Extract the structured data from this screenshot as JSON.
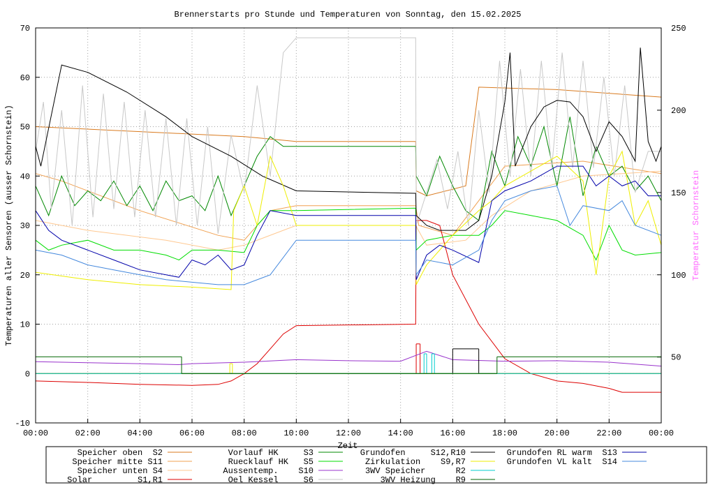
{
  "chart_data": {
    "type": "line",
    "title": "Brennerstarts pro Stunde und Temperaturen von Sonntag, den 15.02.2025",
    "x_label": "Zeit",
    "y_label": "Temperaturen aller Sensoren (ausser Schornstein)",
    "y2_label": "Temperatur Schornstein",
    "y2_label_color": "#ff66ff",
    "grid": true,
    "xlim": [
      0,
      24
    ],
    "xticks": [
      {
        "value": 0,
        "label": "00:00"
      },
      {
        "value": 2,
        "label": "02:00"
      },
      {
        "value": 4,
        "label": "04:00"
      },
      {
        "value": 6,
        "label": "06:00"
      },
      {
        "value": 8,
        "label": "08:00"
      },
      {
        "value": 10,
        "label": "10:00"
      },
      {
        "value": 12,
        "label": "12:00"
      },
      {
        "value": 14,
        "label": "14:00"
      },
      {
        "value": 16,
        "label": "16:00"
      },
      {
        "value": 18,
        "label": "18:00"
      },
      {
        "value": 20,
        "label": "20:00"
      },
      {
        "value": 22,
        "label": "22:00"
      },
      {
        "value": 24,
        "label": "00:00"
      }
    ],
    "ylim": [
      -10,
      70
    ],
    "yticks": [
      -10,
      0,
      10,
      20,
      30,
      40,
      50,
      60,
      70
    ],
    "y2lim": [
      10,
      250
    ],
    "y2ticks": [
      50,
      100,
      150,
      200,
      250
    ],
    "series": [
      {
        "name": "Speicher oben  S2",
        "color": "#d97a1e",
        "x": [
          0,
          4,
          8,
          10,
          14.58,
          14.6,
          15,
          16.5,
          17,
          20,
          24
        ],
        "values": [
          50,
          49,
          48,
          47,
          47,
          37,
          36,
          38,
          58,
          57.5,
          56
        ]
      },
      {
        "name": "Speicher mitte S11",
        "color": "#f0a050",
        "x": [
          0,
          1,
          4,
          7,
          8,
          9,
          10,
          14.58,
          14.7,
          16,
          17,
          18,
          21,
          24
        ],
        "values": [
          40.5,
          39,
          33,
          28,
          27,
          33,
          34,
          34,
          30,
          28,
          35,
          42,
          43,
          40.5
        ]
      },
      {
        "name": "Speicher unten S4",
        "color": "#ffc890",
        "x": [
          0,
          2,
          5,
          7,
          8,
          10,
          14.58,
          15,
          16.5,
          17.5,
          19,
          21,
          24
        ],
        "values": [
          31,
          29,
          27,
          25,
          26,
          30,
          30,
          26,
          27,
          32,
          37,
          40,
          41
        ]
      },
      {
        "name": "Solar         S1,R1",
        "color": "#dd0000",
        "x": [
          0,
          2,
          4,
          6,
          7,
          7.5,
          8,
          8.5,
          9,
          9.5,
          10,
          14.58,
          14.6,
          15,
          15.5,
          16,
          17,
          18,
          19,
          20,
          21,
          22,
          22.5,
          24
        ],
        "values": [
          -1.5,
          -1.8,
          -2.2,
          -2.4,
          -2.2,
          -1.5,
          0,
          2,
          5,
          8,
          9.7,
          10,
          31,
          31,
          30,
          20,
          10,
          3,
          0,
          -1.5,
          -2,
          -3,
          -3.8,
          -3.8
        ],
        "relay_x": [
          0,
          14.6,
          14.75,
          24
        ],
        "relay_values": [
          0,
          6,
          0,
          0
        ]
      },
      {
        "name": "Vorlauf HK     S3",
        "color": "#008800",
        "x": [
          0,
          0.5,
          1,
          1.5,
          2,
          2.5,
          3,
          3.5,
          4,
          4.5,
          5,
          5.5,
          6,
          6.5,
          7,
          7.5,
          8,
          8.5,
          9,
          9.5,
          10,
          14.58,
          14.6,
          15,
          15.5,
          16,
          16.5,
          17,
          17.5,
          18,
          18.5,
          19,
          19.5,
          20,
          20.5,
          21,
          21.5,
          22,
          22.5,
          23,
          23.5,
          24
        ],
        "values": [
          38,
          32,
          40,
          34,
          37,
          35,
          39,
          34,
          38,
          33,
          39,
          35,
          36,
          33,
          40,
          32,
          38,
          44,
          48,
          46,
          46,
          46,
          40,
          36,
          44,
          38,
          33,
          31,
          45,
          38,
          48,
          42,
          50,
          38,
          52,
          36,
          46,
          40,
          42,
          37,
          40,
          35
        ]
      },
      {
        "name": "Ruecklauf HK   S5",
        "color": "#00dd00",
        "x": [
          0,
          0.5,
          1,
          2,
          3,
          4,
          5,
          5.5,
          6,
          7,
          8,
          8.5,
          9,
          10,
          14.58,
          14.6,
          15,
          16,
          17,
          17.5,
          18,
          19,
          20,
          21,
          21.5,
          22,
          22.5,
          23,
          24
        ],
        "values": [
          27,
          25,
          26,
          27,
          25,
          25,
          24,
          23,
          25,
          25,
          24.5,
          30,
          33,
          33,
          33.5,
          25,
          27,
          28,
          28,
          30,
          33,
          32,
          31,
          28,
          23,
          30,
          25,
          24,
          24.5
        ]
      },
      {
        "name": "Aussentemp.    S10",
        "color": "#9933cc",
        "x": [
          0,
          2,
          4,
          5.5,
          6,
          8,
          10,
          12,
          14,
          15,
          16,
          18,
          20,
          22,
          24
        ],
        "values": [
          2.4,
          2.2,
          2,
          1.8,
          2,
          2.3,
          2.8,
          2.6,
          2.5,
          4.5,
          2.8,
          2.5,
          2.6,
          2.3,
          1.5
        ]
      },
      {
        "name": "Oel Kessel     S6",
        "color": "#c8c8c8",
        "axis": "y2",
        "x": [
          0,
          0.3,
          0.6,
          1,
          1.4,
          1.8,
          2.2,
          2.6,
          3,
          3.4,
          3.8,
          4.2,
          4.6,
          5,
          5.4,
          5.8,
          6.2,
          6.6,
          7,
          7.5,
          8,
          8.5,
          9,
          9.5,
          10,
          14.58,
          14.6,
          15,
          15.4,
          15.8,
          16.2,
          16.6,
          17,
          17.4,
          17.8,
          18.2,
          18.6,
          19,
          19.4,
          19.8,
          20.2,
          20.6,
          21,
          21.4,
          21.8,
          22.2,
          22.6,
          23,
          23.5,
          24
        ],
        "values": [
          175,
          205,
          140,
          200,
          130,
          215,
          135,
          210,
          140,
          205,
          135,
          200,
          135,
          195,
          130,
          195,
          130,
          190,
          125,
          185,
          150,
          215,
          160,
          235,
          244,
          244,
          130,
          150,
          170,
          140,
          175,
          130,
          200,
          150,
          230,
          160,
          225,
          160,
          230,
          165,
          235,
          165,
          230,
          165,
          220,
          160,
          215,
          150,
          175,
          175
        ]
      },
      {
        "name": "Grundofen     S12,R10",
        "color": "#000000",
        "axis": "y2",
        "x": [
          0,
          0.2,
          1,
          2,
          3.5,
          5,
          6,
          7.5,
          8.7,
          10,
          14.58,
          14.6,
          15,
          15.5,
          16.5,
          17,
          17.5,
          18,
          18.2,
          18.4,
          19,
          19.5,
          20,
          20.5,
          21,
          21.5,
          22,
          22.5,
          23,
          23.2,
          23.5,
          23.8,
          24
        ],
        "values": [
          178,
          166,
          227.5,
          223,
          211,
          196,
          184,
          172,
          160,
          151,
          149.5,
          136,
          130,
          127,
          127,
          133,
          160,
          205,
          235,
          166,
          190,
          202,
          206,
          205,
          196,
          175,
          193,
          184,
          169,
          238,
          181,
          169,
          178
        ],
        "relay_x": [
          0,
          16,
          17,
          24
        ],
        "relay_values": [
          0,
          5,
          0,
          0
        ]
      },
      {
        "name": "Zirkulation    S9,R7",
        "color": "#eeee00",
        "x": [
          0,
          2,
          4,
          6,
          7.5,
          7.6,
          8,
          8.5,
          9,
          9.5,
          10,
          14.58,
          14.6,
          15,
          16,
          17,
          17.5,
          18,
          19,
          20,
          21,
          21.5,
          22,
          22.5,
          23,
          23.5,
          24
        ],
        "values": [
          20.5,
          19,
          18,
          17.5,
          17,
          33,
          38,
          30,
          44,
          38,
          30,
          30,
          18,
          22,
          28,
          33,
          35,
          38,
          41,
          44,
          39,
          20,
          40,
          45,
          30,
          35,
          26
        ],
        "relay_x": [
          0,
          7.45,
          7.55,
          24
        ],
        "relay_values": [
          0,
          2,
          0,
          0
        ]
      },
      {
        "name": "3WV Speicher      R2",
        "color": "#00cccc",
        "step": true,
        "x": [
          0,
          14.9,
          15,
          15.2,
          15.3,
          24
        ],
        "values": [
          0,
          4,
          0,
          4,
          0,
          0
        ]
      },
      {
        "name": "3WV Heizung    R9",
        "color": "#006600",
        "step": true,
        "x": [
          0,
          5.6,
          17.7,
          24
        ],
        "values": [
          3.4,
          0,
          3.4,
          3.4
        ]
      },
      {
        "name": "Grundofen RL warm  S13",
        "color": "#0000aa",
        "x": [
          0,
          0.5,
          1,
          2,
          3,
          4,
          5,
          5.5,
          6,
          6.5,
          7,
          7.5,
          8,
          8.5,
          9,
          10,
          14.58,
          14.6,
          15,
          15.5,
          16,
          17,
          17.5,
          18,
          18.5,
          19,
          20,
          21,
          21.5,
          22,
          22.5,
          23,
          23.5,
          24
        ],
        "values": [
          33,
          29,
          27,
          25,
          23,
          21,
          20,
          19.5,
          23,
          22,
          24,
          21,
          22,
          28,
          33,
          32,
          32,
          19,
          24,
          26,
          25,
          22.5,
          35,
          37,
          38,
          39,
          42,
          42,
          38,
          40,
          38,
          39,
          36,
          36
        ]
      },
      {
        "name": "Grundofen VL kalt  S14",
        "color": "#4488dd",
        "x": [
          0,
          1,
          2,
          3,
          4,
          5,
          6,
          7,
          8,
          9,
          10,
          14.58,
          14.6,
          15,
          16,
          17,
          17.5,
          18,
          19,
          20,
          20.5,
          21,
          22,
          22.5,
          23,
          24
        ],
        "values": [
          25,
          24,
          22,
          21,
          20,
          19,
          18.5,
          18,
          18,
          20,
          27,
          27,
          20,
          23,
          22,
          25,
          31,
          35,
          37,
          38,
          30,
          34,
          33,
          35,
          30,
          28
        ]
      }
    ]
  }
}
